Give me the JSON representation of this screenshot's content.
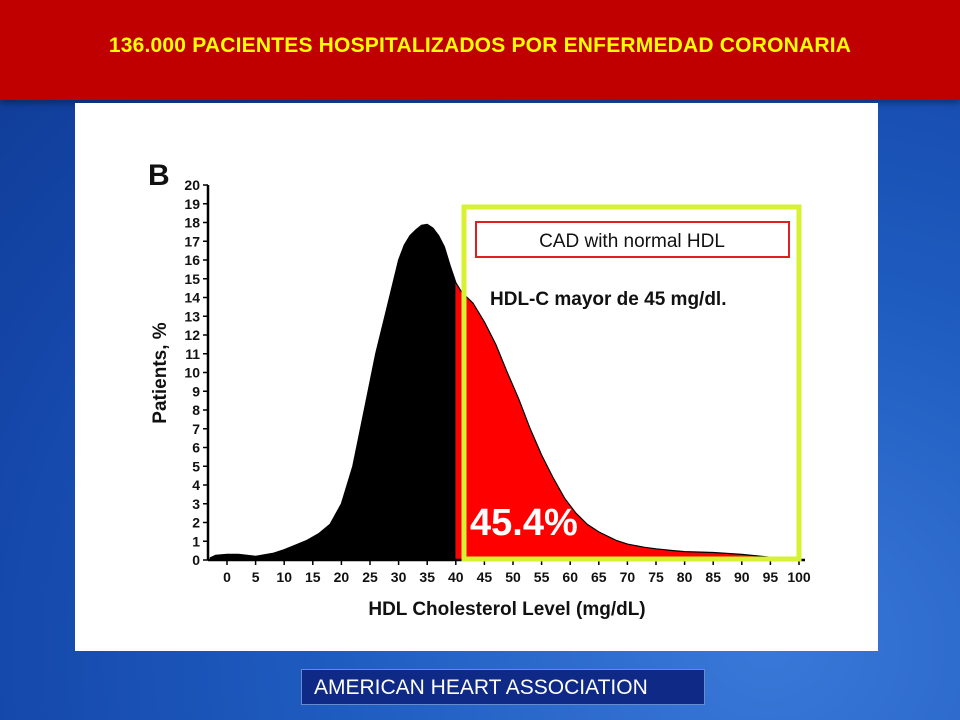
{
  "header": {
    "title": "136.000 PACIENTES HOSPITALIZADOS POR ENFERMEDAD CORONARIA"
  },
  "footer": {
    "source": "AMERICAN HEART ASSOCIATION"
  },
  "colors": {
    "header_bg": "#c00000",
    "header_text": "#ffff00",
    "highlight_box": "#d7f230",
    "normal_hdl_fill": "#ff0000",
    "low_hdl_fill": "#000000"
  },
  "chart_data": {
    "type": "area",
    "panel_letter": "B",
    "xlabel": "HDL Cholesterol Level (mg/dL)",
    "ylabel": "Patients, %",
    "xlim": [
      0,
      100
    ],
    "ylim": [
      0,
      20
    ],
    "x_ticks": [
      0,
      5,
      10,
      15,
      20,
      25,
      30,
      35,
      40,
      45,
      50,
      55,
      60,
      65,
      70,
      75,
      80,
      85,
      90,
      95,
      100
    ],
    "y_ticks": [
      0,
      1,
      2,
      3,
      4,
      5,
      6,
      7,
      8,
      9,
      10,
      11,
      12,
      13,
      14,
      15,
      16,
      17,
      18,
      19,
      20
    ],
    "threshold_x": 40,
    "series": [
      {
        "x": [
          -3,
          -2,
          0,
          2,
          5,
          8,
          10,
          12,
          14,
          16,
          18,
          20,
          22,
          24,
          26,
          28,
          30,
          31,
          32,
          33,
          34,
          35,
          36,
          37,
          38,
          39,
          40,
          41,
          42,
          43,
          45,
          47,
          49,
          51,
          53,
          55,
          57,
          59,
          61,
          63,
          65,
          68,
          70,
          73,
          75,
          78,
          80,
          85,
          90,
          95,
          100
        ],
        "y": [
          0.1,
          0.25,
          0.3,
          0.3,
          0.2,
          0.35,
          0.55,
          0.8,
          1.05,
          1.4,
          1.9,
          3.0,
          5.0,
          8.0,
          11.0,
          13.5,
          16.0,
          16.8,
          17.3,
          17.6,
          17.85,
          17.9,
          17.7,
          17.3,
          16.7,
          15.7,
          14.8,
          14.3,
          14.0,
          13.7,
          12.7,
          11.5,
          10.0,
          8.6,
          7.0,
          5.6,
          4.4,
          3.3,
          2.5,
          1.9,
          1.5,
          1.05,
          0.85,
          0.68,
          0.6,
          0.5,
          0.45,
          0.4,
          0.3,
          0.15,
          0.0
        ]
      }
    ],
    "annotations": {
      "box_title": "CAD with normal HDL",
      "box_subtitle": "HDL-C mayor de 45 mg/dl.",
      "percentage": "45.4%"
    }
  }
}
